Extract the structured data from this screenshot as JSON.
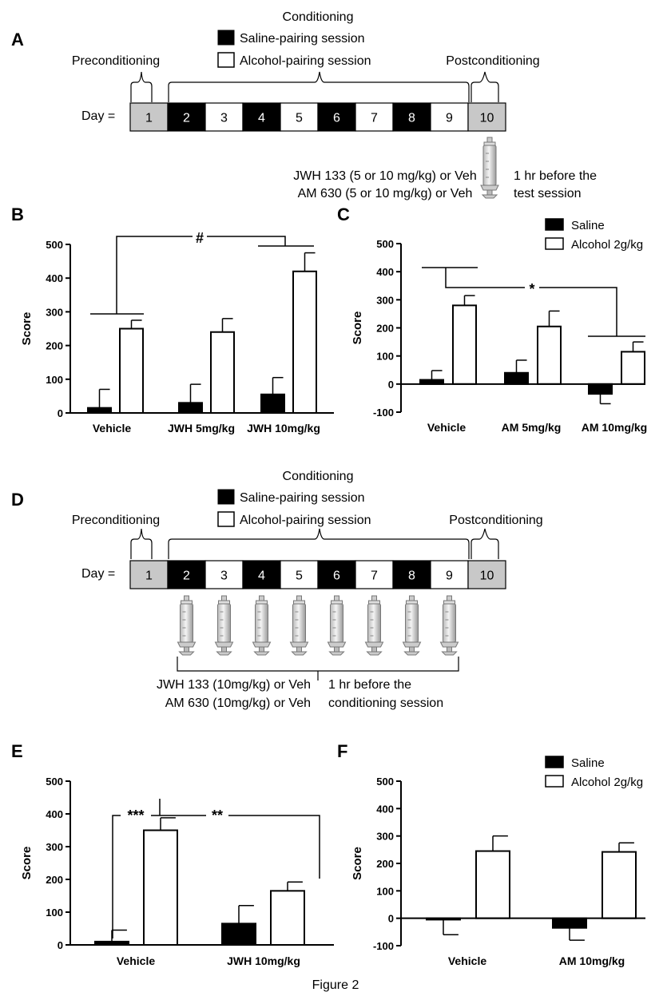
{
  "figure_caption": "Figure 2",
  "schedule_A": {
    "panel_label": "A",
    "conditioning_title": "Conditioning",
    "legend_saline": "Saline-pairing session",
    "legend_alcohol": "Alcohol-pairing session",
    "preconditioning": "Preconditioning",
    "postconditioning": "Postconditioning",
    "day_label": "Day =",
    "days": [
      {
        "n": "1",
        "kind": "gray"
      },
      {
        "n": "2",
        "kind": "black"
      },
      {
        "n": "3",
        "kind": "white"
      },
      {
        "n": "4",
        "kind": "black"
      },
      {
        "n": "5",
        "kind": "white"
      },
      {
        "n": "6",
        "kind": "black"
      },
      {
        "n": "7",
        "kind": "white"
      },
      {
        "n": "8",
        "kind": "black"
      },
      {
        "n": "9",
        "kind": "white"
      },
      {
        "n": "10",
        "kind": "gray"
      }
    ],
    "treatment_line1": "JWH 133 (5 or 10 mg/kg) or Veh",
    "treatment_line2": "AM 630 (5 or 10 mg/kg) or Veh",
    "timing_line1": "1 hr before the",
    "timing_line2": "test session",
    "syringe_icon": "syringe-icon"
  },
  "schedule_D": {
    "panel_label": "D",
    "conditioning_title": "Conditioning",
    "legend_saline": "Saline-pairing session",
    "legend_alcohol": "Alcohol-pairing session",
    "preconditioning": "Preconditioning",
    "postconditioning": "Postconditioning",
    "day_label": "Day =",
    "days": [
      {
        "n": "1",
        "kind": "gray"
      },
      {
        "n": "2",
        "kind": "black"
      },
      {
        "n": "3",
        "kind": "white"
      },
      {
        "n": "4",
        "kind": "black"
      },
      {
        "n": "5",
        "kind": "white"
      },
      {
        "n": "6",
        "kind": "black"
      },
      {
        "n": "7",
        "kind": "white"
      },
      {
        "n": "8",
        "kind": "black"
      },
      {
        "n": "9",
        "kind": "white"
      },
      {
        "n": "10",
        "kind": "gray"
      }
    ],
    "treatment_line1": "JWH 133 (10mg/kg) or Veh",
    "treatment_line2": "AM 630 (10mg/kg) or Veh",
    "timing_line1": "1 hr before the",
    "timing_line2": "conditioning session",
    "syringe_icon": "syringe-icon"
  },
  "chart_data": [
    {
      "panel": "B",
      "type": "bar",
      "ylabel": "Score",
      "ylim": [
        0,
        500
      ],
      "yticks": [
        "0",
        "100",
        "200",
        "300",
        "400",
        "500"
      ],
      "categories": [
        "Vehicle",
        "JWH  5mg/kg",
        "JWH  10mg/kg"
      ],
      "series": [
        {
          "fill": "#000000",
          "values": [
            15,
            30,
            55
          ],
          "errors": [
            55,
            55,
            50
          ]
        },
        {
          "fill": "#ffffff",
          "values": [
            250,
            240,
            420
          ],
          "errors": [
            25,
            40,
            55
          ]
        }
      ],
      "annotations": [
        "#"
      ],
      "legend": false
    },
    {
      "panel": "C",
      "type": "bar",
      "ylabel": "Score",
      "ylim": [
        -100,
        500
      ],
      "yticks": [
        "-100",
        "0",
        "100",
        "200",
        "300",
        "400",
        "500"
      ],
      "categories": [
        "Vehicle",
        "AM 5mg/kg",
        "AM 10mg/kg"
      ],
      "series": [
        {
          "name": "Saline",
          "fill": "#000000",
          "values": [
            15,
            40,
            -35
          ],
          "errors": [
            33,
            45,
            35
          ]
        },
        {
          "name": "Alcohol 2g/kg",
          "fill": "#ffffff",
          "values": [
            280,
            205,
            115
          ],
          "errors": [
            35,
            55,
            35
          ]
        }
      ],
      "annotations": [
        "*"
      ],
      "legend": "top-right"
    },
    {
      "panel": "E",
      "type": "bar",
      "ylabel": "Score",
      "ylim": [
        0,
        500
      ],
      "yticks": [
        "0",
        "100",
        "200",
        "300",
        "400",
        "500"
      ],
      "categories": [
        "Vehicle",
        "JWH 10mg/kg"
      ],
      "series": [
        {
          "fill": "#000000",
          "values": [
            10,
            65
          ],
          "errors": [
            35,
            55
          ]
        },
        {
          "fill": "#ffffff",
          "values": [
            350,
            165
          ],
          "errors": [
            38,
            27
          ]
        }
      ],
      "annotations": [
        "***",
        "**"
      ],
      "legend": false
    },
    {
      "panel": "F",
      "type": "bar",
      "ylabel": "Score",
      "ylim": [
        -100,
        500
      ],
      "yticks": [
        "-100",
        "0",
        "100",
        "200",
        "300",
        "400",
        "500"
      ],
      "categories": [
        "Vehicle",
        "AM 10mg/kg"
      ],
      "series": [
        {
          "name": "Saline",
          "fill": "#000000",
          "values": [
            -5,
            -35
          ],
          "errors": [
            55,
            45
          ]
        },
        {
          "name": "Alcohol 2g/kg",
          "fill": "#ffffff",
          "values": [
            245,
            242
          ],
          "errors": [
            55,
            33
          ]
        }
      ],
      "annotations": [],
      "legend": "top-right"
    }
  ]
}
